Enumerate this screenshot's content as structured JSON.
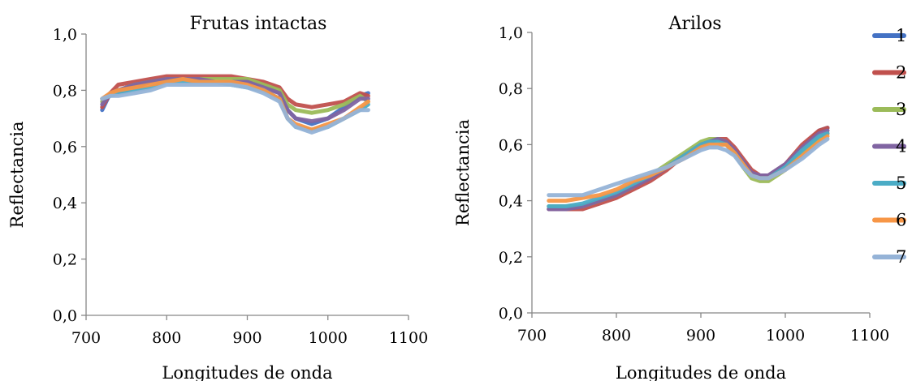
{
  "chart_data": [
    {
      "type": "line",
      "title": "Frutas intactas",
      "xlabel": "Longitudes de onda",
      "ylabel": "Reflectancia",
      "xlim": [
        700,
        1100
      ],
      "ylim": [
        0,
        1
      ],
      "xticks": [
        700,
        800,
        900,
        1000,
        1100
      ],
      "xtick_labels": [
        "700",
        "800",
        "900",
        "1000",
        "1100"
      ],
      "yticks": [
        0,
        0.2,
        0.4,
        0.6,
        0.8,
        1.0
      ],
      "ytick_labels": [
        "0,0",
        "0,2",
        "0,4",
        "0,6",
        "0,8",
        "1,0"
      ],
      "grid": false,
      "x": [
        720,
        730,
        740,
        760,
        780,
        800,
        820,
        840,
        860,
        880,
        900,
        920,
        940,
        950,
        960,
        980,
        1000,
        1020,
        1040,
        1050
      ],
      "series": [
        {
          "name": "1",
          "color": "#4472c4",
          "values": [
            0.73,
            0.79,
            0.79,
            0.81,
            0.83,
            0.84,
            0.84,
            0.84,
            0.83,
            0.83,
            0.83,
            0.82,
            0.79,
            0.73,
            0.7,
            0.68,
            0.7,
            0.74,
            0.78,
            0.79
          ]
        },
        {
          "name": "2",
          "color": "#c0504d",
          "values": [
            0.74,
            0.79,
            0.82,
            0.83,
            0.84,
            0.85,
            0.85,
            0.85,
            0.85,
            0.85,
            0.84,
            0.83,
            0.81,
            0.77,
            0.75,
            0.74,
            0.75,
            0.76,
            0.79,
            0.78
          ]
        },
        {
          "name": "3",
          "color": "#9bbb59",
          "values": [
            0.76,
            0.79,
            0.8,
            0.82,
            0.83,
            0.84,
            0.84,
            0.84,
            0.84,
            0.84,
            0.84,
            0.82,
            0.8,
            0.75,
            0.73,
            0.72,
            0.73,
            0.75,
            0.78,
            0.76
          ]
        },
        {
          "name": "4",
          "color": "#8064a2",
          "values": [
            0.75,
            0.79,
            0.8,
            0.82,
            0.83,
            0.84,
            0.84,
            0.84,
            0.83,
            0.83,
            0.83,
            0.81,
            0.79,
            0.73,
            0.7,
            0.69,
            0.7,
            0.73,
            0.77,
            0.77
          ]
        },
        {
          "name": "5",
          "color": "#4bacc6",
          "values": [
            0.77,
            0.78,
            0.79,
            0.8,
            0.81,
            0.83,
            0.83,
            0.83,
            0.83,
            0.82,
            0.81,
            0.8,
            0.77,
            0.7,
            0.67,
            0.66,
            0.67,
            0.7,
            0.73,
            0.75
          ]
        },
        {
          "name": "6",
          "color": "#f79646",
          "values": [
            0.77,
            0.79,
            0.8,
            0.81,
            0.82,
            0.83,
            0.84,
            0.83,
            0.83,
            0.83,
            0.82,
            0.8,
            0.77,
            0.7,
            0.68,
            0.66,
            0.68,
            0.7,
            0.74,
            0.76
          ]
        },
        {
          "name": "7",
          "color": "#95b3d7",
          "values": [
            0.77,
            0.78,
            0.78,
            0.79,
            0.8,
            0.82,
            0.82,
            0.82,
            0.82,
            0.82,
            0.81,
            0.79,
            0.76,
            0.7,
            0.67,
            0.65,
            0.67,
            0.7,
            0.73,
            0.73
          ]
        }
      ]
    },
    {
      "type": "line",
      "title": "Arilos",
      "xlabel": "Longitudes de onda",
      "ylabel": "Reflectancia",
      "xlim": [
        700,
        1100
      ],
      "ylim": [
        0,
        1
      ],
      "xticks": [
        700,
        800,
        900,
        1000,
        1100
      ],
      "xtick_labels": [
        "700",
        "800",
        "900",
        "1000",
        "1100"
      ],
      "yticks": [
        0,
        0.2,
        0.4,
        0.6,
        0.8,
        1.0
      ],
      "ytick_labels": [
        "0,0",
        "0,2",
        "0,4",
        "0,6",
        "0,8",
        "1,0"
      ],
      "grid": false,
      "legend": "right",
      "x": [
        720,
        740,
        760,
        780,
        800,
        820,
        840,
        860,
        880,
        900,
        910,
        920,
        930,
        940,
        950,
        960,
        970,
        980,
        1000,
        1020,
        1040,
        1050
      ],
      "series": [
        {
          "name": "1",
          "color": "#4472c4",
          "values": [
            0.37,
            0.37,
            0.38,
            0.4,
            0.42,
            0.45,
            0.48,
            0.52,
            0.56,
            0.6,
            0.61,
            0.62,
            0.61,
            0.58,
            0.54,
            0.5,
            0.49,
            0.49,
            0.53,
            0.59,
            0.65,
            0.66
          ]
        },
        {
          "name": "2",
          "color": "#c0504d",
          "values": [
            0.37,
            0.37,
            0.37,
            0.39,
            0.41,
            0.44,
            0.47,
            0.51,
            0.56,
            0.6,
            0.61,
            0.62,
            0.62,
            0.59,
            0.55,
            0.51,
            0.49,
            0.49,
            0.53,
            0.6,
            0.65,
            0.66
          ]
        },
        {
          "name": "3",
          "color": "#9bbb59",
          "values": [
            0.38,
            0.38,
            0.38,
            0.4,
            0.42,
            0.45,
            0.49,
            0.53,
            0.57,
            0.61,
            0.62,
            0.62,
            0.61,
            0.57,
            0.52,
            0.48,
            0.47,
            0.47,
            0.51,
            0.57,
            0.62,
            0.64
          ]
        },
        {
          "name": "4",
          "color": "#8064a2",
          "values": [
            0.37,
            0.37,
            0.38,
            0.4,
            0.42,
            0.45,
            0.48,
            0.52,
            0.56,
            0.6,
            0.61,
            0.62,
            0.61,
            0.58,
            0.54,
            0.5,
            0.49,
            0.49,
            0.53,
            0.59,
            0.64,
            0.65
          ]
        },
        {
          "name": "5",
          "color": "#4bacc6",
          "values": [
            0.38,
            0.38,
            0.39,
            0.41,
            0.43,
            0.46,
            0.49,
            0.52,
            0.56,
            0.6,
            0.61,
            0.61,
            0.6,
            0.57,
            0.53,
            0.49,
            0.48,
            0.48,
            0.52,
            0.58,
            0.63,
            0.64
          ]
        },
        {
          "name": "6",
          "color": "#f79646",
          "values": [
            0.4,
            0.4,
            0.41,
            0.42,
            0.44,
            0.47,
            0.49,
            0.52,
            0.55,
            0.59,
            0.6,
            0.6,
            0.6,
            0.57,
            0.53,
            0.49,
            0.48,
            0.48,
            0.51,
            0.56,
            0.61,
            0.63
          ]
        },
        {
          "name": "7",
          "color": "#95b3d7",
          "values": [
            0.42,
            0.42,
            0.42,
            0.44,
            0.46,
            0.48,
            0.5,
            0.52,
            0.55,
            0.58,
            0.59,
            0.59,
            0.58,
            0.56,
            0.52,
            0.49,
            0.48,
            0.48,
            0.51,
            0.55,
            0.6,
            0.62
          ]
        }
      ]
    }
  ]
}
